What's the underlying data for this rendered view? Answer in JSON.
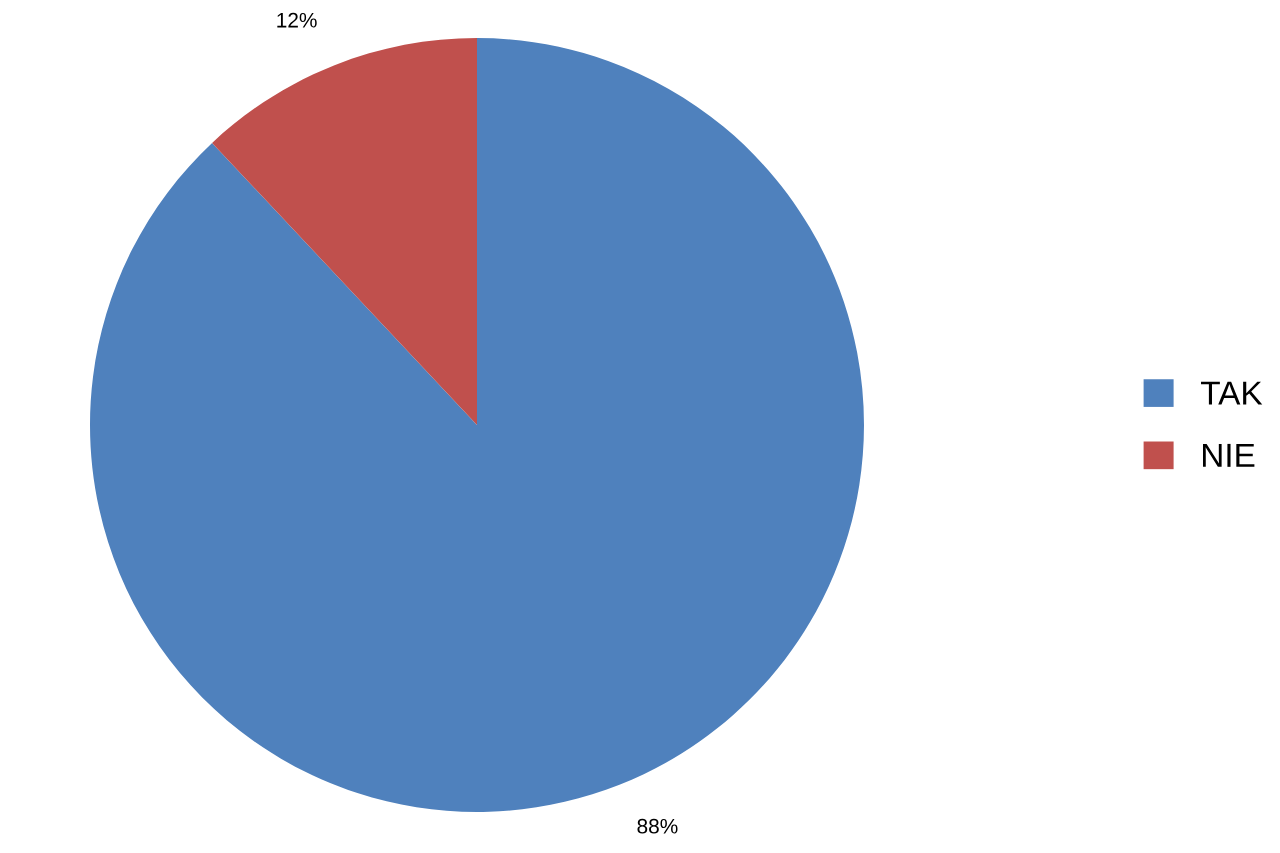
{
  "chart_data": {
    "type": "pie",
    "categories": [
      "TAK",
      "NIE"
    ],
    "values": [
      88,
      12
    ],
    "colors": [
      "#4f81bd",
      "#c0504d"
    ],
    "value_labels": [
      "88%",
      "12%"
    ],
    "legend": "right"
  }
}
